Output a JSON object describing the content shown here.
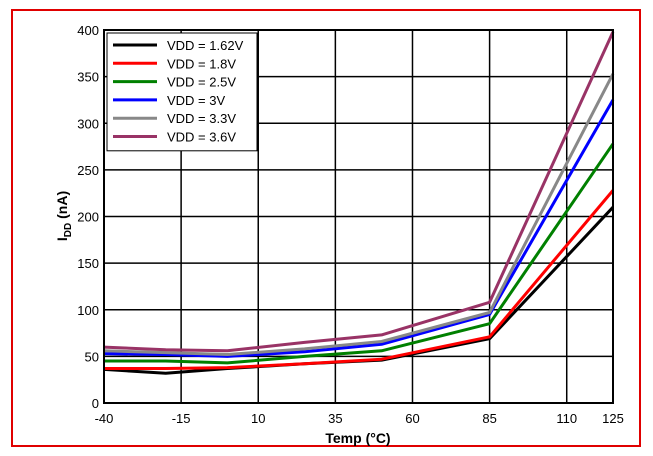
{
  "frame_color": "#e00000",
  "chart_data": {
    "type": "line",
    "title": "",
    "xlabel": "Temp (°C)",
    "ylabel_main": "I",
    "ylabel_sub": "DD",
    "ylabel_unit": " (nA)",
    "x_ticks": [
      -40,
      -15,
      10,
      35,
      60,
      85,
      110,
      125
    ],
    "y_ticks": [
      0,
      50,
      100,
      150,
      200,
      250,
      300,
      350,
      400
    ],
    "xlim": [
      -40,
      125
    ],
    "ylim": [
      0,
      400
    ],
    "grid": true,
    "legend_position": "top-left",
    "x": [
      -40,
      -20,
      0,
      25,
      50,
      85,
      125
    ],
    "series": [
      {
        "name": "VDD = 1.62V",
        "color": "#000000",
        "values": [
          36,
          32,
          37,
          42,
          46,
          69,
          210
        ]
      },
      {
        "name": "VDD = 1.8V",
        "color": "#ff0000",
        "values": [
          37,
          37,
          38,
          42,
          47,
          71,
          228
        ]
      },
      {
        "name": "VDD = 2.5V",
        "color": "#008000",
        "values": [
          45,
          45,
          43,
          50,
          56,
          85,
          278
        ]
      },
      {
        "name": "VDD = 3V",
        "color": "#0000ff",
        "values": [
          53,
          52,
          50,
          55,
          63,
          95,
          325
        ]
      },
      {
        "name": "VDD = 3.3V",
        "color": "#888888",
        "values": [
          56,
          54,
          52,
          58,
          66,
          97,
          353
        ]
      },
      {
        "name": "VDD = 3.6V",
        "color": "#993366",
        "values": [
          60,
          57,
          56,
          65,
          73,
          108,
          398
        ]
      }
    ]
  }
}
